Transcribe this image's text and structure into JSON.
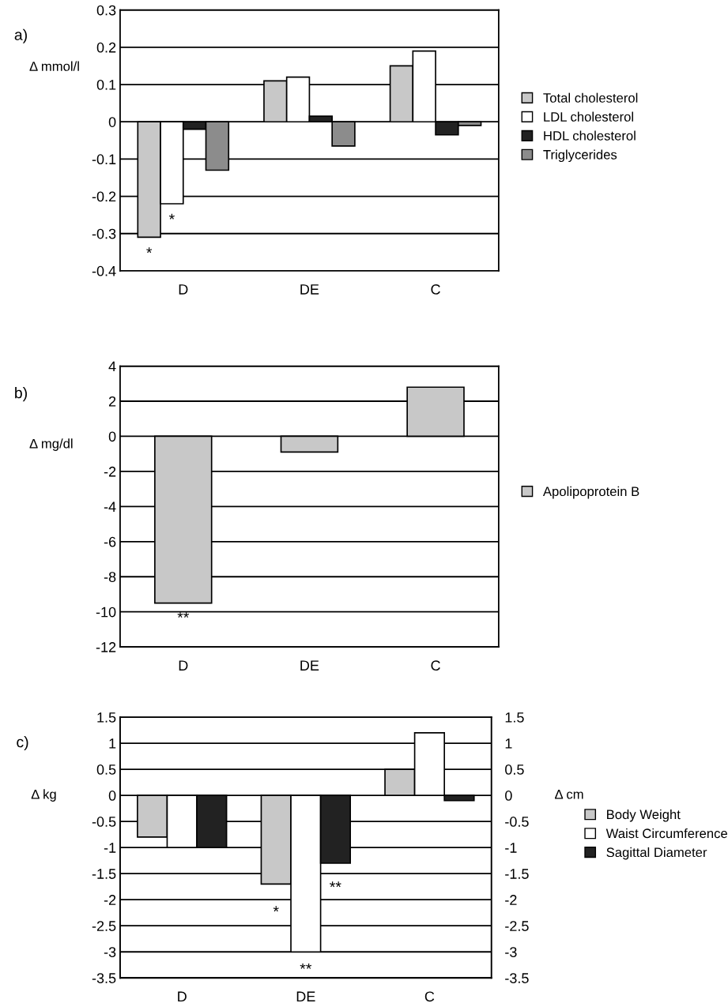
{
  "chart_data": [
    {
      "type": "bar",
      "title": "a)",
      "ylabel": "Δ mmol/l",
      "categories": [
        "D",
        "DE",
        "C"
      ],
      "series": [
        {
          "name": "Total cholesterol",
          "color": "#c8c8c8",
          "values": [
            -0.31,
            0.11,
            0.15
          ]
        },
        {
          "name": "LDL cholesterol",
          "color": "#ffffff",
          "values": [
            -0.22,
            0.12,
            0.19
          ]
        },
        {
          "name": "HDL cholesterol",
          "color": "#222222",
          "values": [
            -0.02,
            0.015,
            -0.035
          ]
        },
        {
          "name": "Triglycerides",
          "color": "#8c8c8c",
          "values": [
            -0.13,
            -0.065,
            -0.01
          ]
        }
      ],
      "ylim": [
        -0.4,
        0.3
      ],
      "yticks": [
        -0.4,
        -0.3,
        -0.2,
        -0.1,
        0,
        0.1,
        0.2,
        0.3
      ],
      "grid": "y",
      "legend": "right",
      "annotations": [
        "*",
        "*"
      ]
    },
    {
      "type": "bar",
      "title": "b)",
      "ylabel": "Δ mg/dl",
      "categories": [
        "D",
        "DE",
        "C"
      ],
      "series": [
        {
          "name": "Apolipoprotein B",
          "color": "#c8c8c8",
          "values": [
            -9.5,
            -0.9,
            2.8
          ]
        }
      ],
      "ylim": [
        -12,
        4
      ],
      "yticks": [
        -12,
        -10,
        -8,
        -6,
        -4,
        -2,
        0,
        2,
        4
      ],
      "grid": "y",
      "legend": "right",
      "annotations": [
        "**"
      ]
    },
    {
      "type": "bar",
      "title": "c)",
      "ylabel": "Δ kg",
      "y2label": "Δ cm",
      "categories": [
        "D",
        "DE",
        "C"
      ],
      "series": [
        {
          "name": "Body Weight",
          "color": "#c8c8c8",
          "values": [
            -0.8,
            -1.7,
            0.5
          ]
        },
        {
          "name": "Waist Circumference",
          "color": "#ffffff",
          "values": [
            -1.0,
            -3.0,
            1.2
          ],
          "axis": "y2"
        },
        {
          "name": "Sagittal Diameter",
          "color": "#222222",
          "values": [
            -1.0,
            -1.3,
            -0.1
          ],
          "axis": "y2"
        }
      ],
      "ylim": [
        -3.5,
        1.5
      ],
      "yticks": [
        -3.5,
        -3,
        -2.5,
        -2,
        -1.5,
        -1,
        -0.5,
        0,
        0.5,
        1,
        1.5
      ],
      "y2lim": [
        -3.5,
        1.5
      ],
      "y2ticks": [
        -3.5,
        -3,
        -2.5,
        -2,
        -1.5,
        -1,
        -0.5,
        0,
        0.5,
        1,
        1.5
      ],
      "grid": "y",
      "legend": "right",
      "annotations": [
        "*",
        "**",
        "**"
      ]
    }
  ]
}
